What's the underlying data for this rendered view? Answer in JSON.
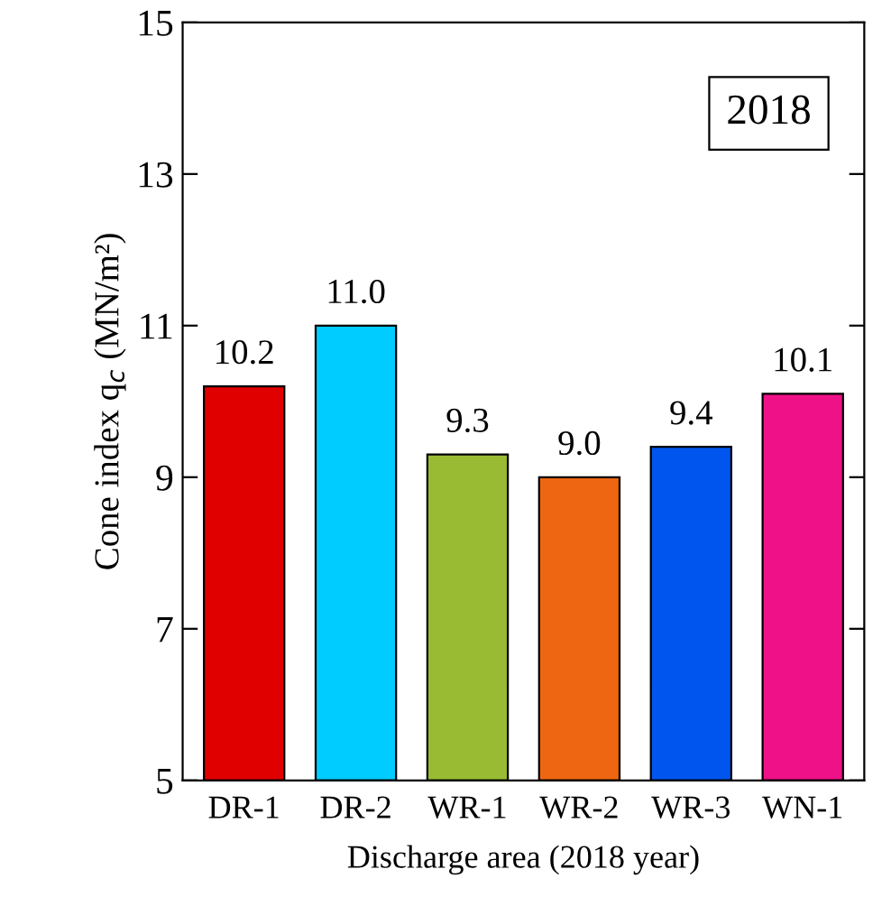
{
  "chart_data": {
    "type": "bar",
    "xlabel": "Discharge area (2018 year)",
    "ylabel": "Cone index q$_{c}$ (MN/m²)",
    "categories": [
      "DR-1",
      "DR-2",
      "WR-1",
      "WR-2",
      "WR-3",
      "WN-1"
    ],
    "values": [
      10.2,
      11.0,
      9.3,
      9.0,
      9.4,
      10.1
    ],
    "value_labels": [
      "10.2",
      "11.0",
      "9.3",
      "9.0",
      "9.4",
      "10.1"
    ],
    "colors": [
      "#e00000",
      "#00ccff",
      "#99bb33",
      "#ee6611",
      "#0055ee",
      "#ee1188"
    ],
    "ylim": [
      5,
      15
    ],
    "yticks": [
      5,
      7,
      9,
      11,
      13,
      15
    ],
    "annotations": [
      "2018"
    ],
    "grid": false,
    "legend": false
  }
}
